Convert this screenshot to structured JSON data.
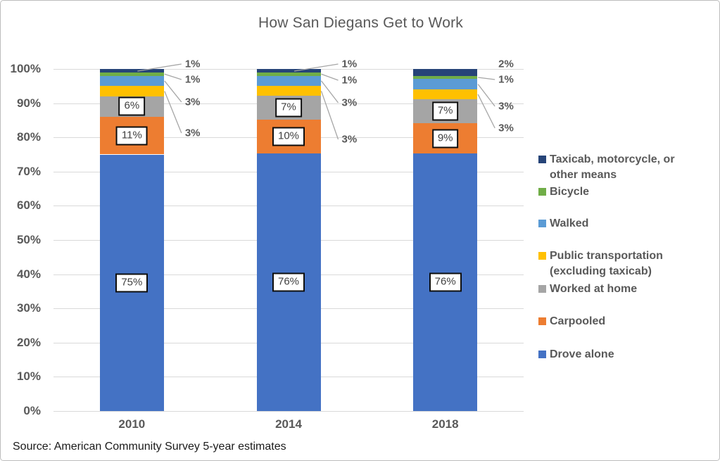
{
  "title": "How San Diegans Get to Work",
  "source_note": "Source: American Community Survey 5-year estimates",
  "chart_data": {
    "type": "bar",
    "stacked": true,
    "unit": "percent",
    "title": "How San Diegans Get to Work",
    "categories": [
      "2010",
      "2014",
      "2018"
    ],
    "series": [
      {
        "name": "Drove alone",
        "color": "#4472C4",
        "values": [
          75,
          76,
          76
        ],
        "label_style": "boxed"
      },
      {
        "name": "Carpooled",
        "color": "#ED7D31",
        "values": [
          11,
          10,
          9
        ],
        "label_style": "boxed"
      },
      {
        "name": "Worked at home",
        "color": "#A5A5A5",
        "values": [
          6,
          7,
          7
        ],
        "label_style": "boxed"
      },
      {
        "name": "Public transportation (excluding taxicab)",
        "color": "#FFC000",
        "values": [
          3,
          3,
          3
        ],
        "label_style": "callout"
      },
      {
        "name": "Walked",
        "color": "#5B9BD5",
        "values": [
          3,
          3,
          3
        ],
        "label_style": "callout"
      },
      {
        "name": "Bicycle",
        "color": "#70AD47",
        "values": [
          1,
          1,
          1
        ],
        "label_style": "callout"
      },
      {
        "name": "Taxicab, motorcycle, or other means",
        "color": "#264478",
        "values": [
          1,
          1,
          2
        ],
        "label_style": "callout"
      }
    ],
    "data_label_format": "{value}%",
    "y_ticks": [
      "0%",
      "10%",
      "20%",
      "30%",
      "40%",
      "50%",
      "60%",
      "70%",
      "80%",
      "90%",
      "100%"
    ],
    "ylim": [
      0,
      100
    ],
    "grid": true,
    "legend_position": "right",
    "legend_order_top_to_bottom": [
      "Taxicab, motorcycle, or other means",
      "Bicycle",
      "Walked",
      "Public transportation (excluding taxicab)",
      "Worked at home",
      "Carpooled",
      "Drove alone"
    ],
    "colors": {
      "gridline": "#D9D9D9",
      "axis_text": "#595959",
      "title_text": "#595959",
      "leader_line": "#A6A6A6",
      "label_box_border": "#0D0D0D",
      "label_box_fill": "#FFFFFF"
    }
  }
}
